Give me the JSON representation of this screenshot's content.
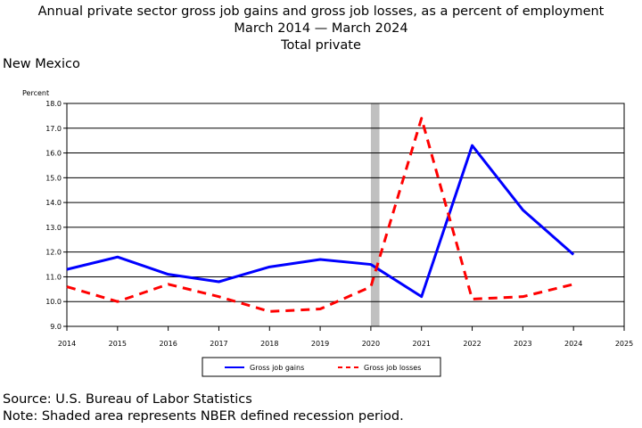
{
  "header": {
    "title": "Annual private sector gross job gains and gross job losses, as a percent of employment",
    "subtitle": "March 2014 — March 2024",
    "subtitle2": "Total private",
    "region": "New Mexico"
  },
  "footer": {
    "source": "Source: U.S. Bureau of Labor Statistics",
    "note": "Note: Shaded area represents NBER defined recession period."
  },
  "chart_data": {
    "type": "line",
    "ylabel": "Percent",
    "xlabel": "",
    "ylim": [
      9.0,
      18.0
    ],
    "xlim": [
      2014,
      2025
    ],
    "x_ticks": [
      "2014",
      "2015",
      "2016",
      "2017",
      "2018",
      "2019",
      "2020",
      "2021",
      "2022",
      "2023",
      "2024",
      "2025"
    ],
    "y_ticks": [
      "9.0",
      "10.0",
      "11.0",
      "12.0",
      "13.0",
      "14.0",
      "15.0",
      "16.0",
      "17.0",
      "18.0"
    ],
    "grid": "horizontal",
    "legend_position": "bottom",
    "recession_shading": {
      "start": 2020.0,
      "end": 2020.17,
      "color": "#c0c0c0"
    },
    "x": [
      2014,
      2015,
      2016,
      2017,
      2018,
      2019,
      2020,
      2021,
      2022,
      2023,
      2024
    ],
    "series": [
      {
        "name": "Gross job gains",
        "color": "#0000ff",
        "style": "solid",
        "values": [
          11.3,
          11.8,
          11.1,
          10.8,
          11.4,
          11.7,
          11.5,
          10.2,
          16.3,
          13.7,
          11.9
        ]
      },
      {
        "name": "Gross job losses",
        "color": "#ff0000",
        "style": "dashed",
        "values": [
          10.6,
          10.0,
          10.7,
          10.2,
          9.6,
          9.7,
          10.6,
          17.4,
          10.1,
          10.2,
          10.7
        ]
      }
    ]
  }
}
